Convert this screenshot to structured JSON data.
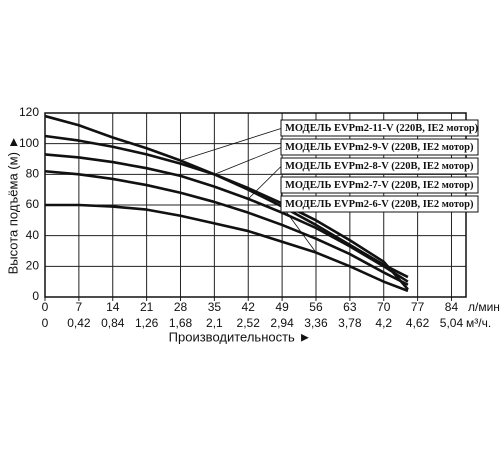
{
  "chart_data": {
    "type": "line",
    "x_label": "Производительность ►",
    "y_label": "Высота подъёма (м) ►",
    "x_unit": "л/мин.",
    "x2_unit": "м³/ч.",
    "x": [
      0,
      7,
      14,
      21,
      28,
      35,
      42,
      49,
      56,
      63,
      70,
      75
    ],
    "xlim": [
      0,
      87
    ],
    "xticks": [
      0,
      7,
      14,
      21,
      28,
      35,
      42,
      49,
      56,
      63,
      70,
      77,
      84
    ],
    "x2lim": [
      0,
      5.22
    ],
    "x2ticks": [
      0,
      {
        "value": 0.42,
        "label": "0,42"
      },
      {
        "value": 0.84,
        "label": "0,84"
      },
      {
        "value": 1.26,
        "label": "1,26"
      },
      {
        "value": 1.68,
        "label": "1,68"
      },
      {
        "value": 2.1,
        "label": "2,1"
      },
      {
        "value": 2.52,
        "label": "2,52"
      },
      {
        "value": 2.94,
        "label": "2,94"
      },
      {
        "value": 3.36,
        "label": "3,36"
      },
      {
        "value": 3.78,
        "label": "3,78"
      },
      {
        "value": 4.2,
        "label": "4,2"
      },
      {
        "value": 4.62,
        "label": "4,62"
      },
      {
        "value": 5.04,
        "label": "5,04"
      }
    ],
    "ylim": [
      0,
      120
    ],
    "yticks": [
      0,
      20,
      40,
      60,
      80,
      100,
      120
    ],
    "grid": true,
    "series": [
      {
        "name": "МОДЕЛЬ EVPm2-11-V (220В, IE2 мотор)",
        "color": "#111111",
        "values": [
          118,
          112,
          104,
          97,
          89,
          80,
          70,
          59,
          47,
          34,
          21,
          13
        ]
      },
      {
        "name": "МОДЕЛЬ EVPm2-9-V (220В, IE2 мотор)",
        "color": "#111111",
        "values": [
          105,
          102,
          98,
          93,
          87,
          80,
          71,
          61,
          50,
          37,
          23,
          5
        ]
      },
      {
        "name": "МОДЕЛЬ EVPm2-8-V (220В, IE2 мотор)",
        "color": "#111111",
        "values": [
          93,
          91,
          88,
          84,
          79,
          72,
          64,
          55,
          45,
          33,
          20,
          10
        ]
      },
      {
        "name": "МОДЕЛЬ EVPm2-7-V (220В, IE2 мотор)",
        "color": "#111111",
        "values": [
          82,
          80,
          77,
          73,
          68,
          62,
          55,
          47,
          38,
          28,
          16,
          8
        ]
      },
      {
        "name": "МОДЕЛЬ EVPm2-6-V (220В, IE2 мотор)",
        "color": "#111111",
        "values": [
          60,
          60,
          59,
          57,
          53,
          48,
          43,
          36,
          29,
          20,
          10,
          4
        ]
      }
    ]
  }
}
